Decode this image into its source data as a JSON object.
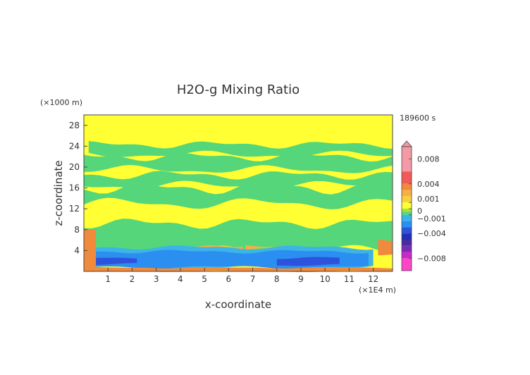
{
  "chart_data": {
    "type": "heatmap",
    "title": "H2O-g Mixing Ratio",
    "xlabel": "x-coordinate",
    "ylabel": "z-coordinate",
    "x_unit": "(×1E4 m)",
    "y_unit": "(×1000 m)",
    "time_label": "189600 s",
    "xlim": [
      0,
      12.8
    ],
    "ylim": [
      0,
      30
    ],
    "x_ticks": [
      1,
      2,
      3,
      4,
      5,
      6,
      7,
      8,
      9,
      10,
      11,
      12
    ],
    "y_ticks": [
      4,
      8,
      12,
      16,
      20,
      24,
      28
    ],
    "colorbar": {
      "labels": [
        "0.008",
        "0.004",
        "0.001",
        "0",
        "−0.001",
        "−0.004",
        "−0.008"
      ],
      "label_values": [
        0.008,
        0.004,
        0.001,
        0,
        -0.001,
        -0.004,
        -0.008
      ],
      "levels": [
        {
          "lo": 0.006,
          "color": "#f49aa6"
        },
        {
          "lo": 0.004,
          "color": "#f25a5a"
        },
        {
          "lo": 0.003,
          "color": "#f08a3c"
        },
        {
          "lo": 0.002,
          "color": "#f5b042"
        },
        {
          "lo": 0.001,
          "color": "#f5d23c"
        },
        {
          "lo": 0.0,
          "color": "#ffff33"
        },
        {
          "lo": -0.0005,
          "color": "#a8e13c"
        },
        {
          "lo": -0.001,
          "color": "#55d67a"
        },
        {
          "lo": -0.002,
          "color": "#3cb4e6"
        },
        {
          "lo": -0.003,
          "color": "#2a8ff0"
        },
        {
          "lo": -0.004,
          "color": "#2d52dc"
        },
        {
          "lo": -0.005,
          "color": "#222fb4"
        },
        {
          "lo": -0.006,
          "color": "#4a2aa0"
        },
        {
          "lo": -0.007,
          "color": "#7a2ab4"
        },
        {
          "lo": -0.008,
          "color": "#c82ac8"
        },
        {
          "lo": -0.01,
          "color": "#ff44c8"
        }
      ]
    },
    "field_features": [
      {
        "desc": "background",
        "value": 0.0003
      },
      {
        "desc": "wet band upper",
        "x": [
          0.2,
          12.8
        ],
        "z": [
          22.4,
          24.3
        ],
        "value": -0.0007
      },
      {
        "desc": "wet band mid",
        "x": [
          0,
          12.8
        ],
        "z": [
          19.5,
          22
        ],
        "value": -0.0007
      },
      {
        "desc": "wet band",
        "x": [
          0,
          12.8
        ],
        "z": [
          16.5,
          18.5
        ],
        "value": -0.0007
      },
      {
        "desc": "wet band",
        "x": [
          0,
          12.8
        ],
        "z": [
          13,
          16
        ],
        "value": -0.0007
      },
      {
        "desc": "boundary layer dry",
        "x": [
          0.3,
          11.8
        ],
        "z": [
          0.8,
          3.8
        ],
        "value": -0.003
      },
      {
        "desc": "surface moist",
        "x": [
          0,
          12.8
        ],
        "z": [
          0,
          0.7
        ],
        "value": 0.003
      },
      {
        "desc": "left edge moist",
        "x": [
          0,
          0.5
        ],
        "z": [
          0,
          8
        ],
        "value": 0.003
      }
    ]
  }
}
